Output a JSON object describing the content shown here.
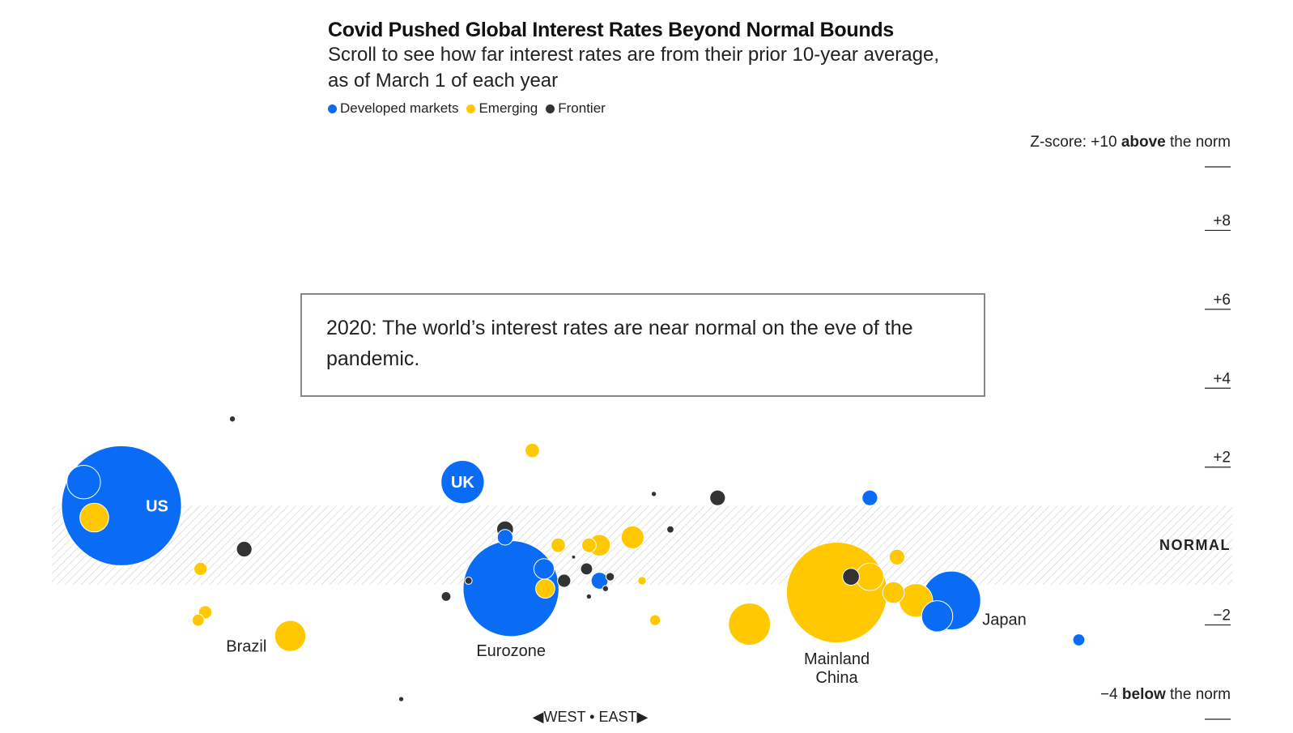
{
  "header": {
    "title": "Covid Pushed Global Interest Rates Beyond Normal Bounds",
    "subtitle": "Scroll to see how far interest rates are from their prior 10-year average, as of March 1 of each year"
  },
  "legend": [
    {
      "label": "Developed markets",
      "color": "#0a6cf5"
    },
    {
      "label": "Emerging",
      "color": "#ffc800"
    },
    {
      "label": "Frontier",
      "color": "#333333"
    }
  ],
  "callout": {
    "text": "2020: The world’s interest rates are near normal on the eve of the pandemic."
  },
  "colors": {
    "developed": "#0a6cf5",
    "emerging": "#ffc800",
    "frontier": "#333333",
    "hatch": "#c8c8c8"
  },
  "chart_data": {
    "type": "scatter",
    "title": "Covid Pushed Global Interest Rates Beyond Normal Bounds",
    "year": 2020,
    "x_axis": {
      "label_west": "◀WEST",
      "separator": "•",
      "label_east": "EAST▶",
      "range": [
        0,
        100
      ]
    },
    "y_axis": {
      "label": "Z-score",
      "range": [
        -4,
        10
      ],
      "top_prefix": "Z-score: +10 ",
      "top_bold": "above",
      "top_suffix": " the norm",
      "bottom_prefix": "−4 ",
      "bottom_bold": "below",
      "bottom_suffix": " the norm",
      "ticks": [
        {
          "value": 8,
          "label": "+8"
        },
        {
          "value": 6,
          "label": "+6"
        },
        {
          "value": 4,
          "label": "+4"
        },
        {
          "value": 2,
          "label": "+2"
        },
        {
          "value": -2,
          "label": "−2"
        }
      ],
      "normal_band": [
        -1,
        1
      ],
      "normal_label": "NORMAL"
    },
    "points": [
      {
        "name": "US",
        "group": "developed",
        "x": 5.9,
        "z": 1.0,
        "size": 10,
        "label": "US",
        "label_inside": true
      },
      {
        "name": "",
        "group": "developed",
        "x": 2.7,
        "z": 1.6,
        "size": 2.8
      },
      {
        "name": "",
        "group": "emerging",
        "x": 3.6,
        "z": 0.7,
        "size": 2.4
      },
      {
        "name": "",
        "group": "frontier",
        "x": 15.3,
        "z": 3.2,
        "size": 0.5
      },
      {
        "name": "",
        "group": "frontier",
        "x": 16.3,
        "z": -0.1,
        "size": 1.3
      },
      {
        "name": "",
        "group": "emerging",
        "x": 12.6,
        "z": -0.6,
        "size": 1.1
      },
      {
        "name": "",
        "group": "emerging",
        "x": 13.0,
        "z": -1.7,
        "size": 1.1
      },
      {
        "name": "",
        "group": "emerging",
        "x": 12.4,
        "z": -1.9,
        "size": 1.0
      },
      {
        "name": "Brazil",
        "group": "emerging",
        "x": 20.2,
        "z": -2.3,
        "size": 2.6,
        "label": "Brazil"
      },
      {
        "name": "",
        "group": "frontier",
        "x": 29.6,
        "z": -3.9,
        "size": 0.4
      },
      {
        "name": "UK",
        "group": "developed",
        "x": 34.8,
        "z": 1.6,
        "size": 3.6,
        "label": "UK",
        "label_inside": true
      },
      {
        "name": "",
        "group": "emerging",
        "x": 40.7,
        "z": 2.4,
        "size": 1.2
      },
      {
        "name": "",
        "group": "frontier",
        "x": 38.4,
        "z": 0.4,
        "size": 1.4
      },
      {
        "name": "",
        "group": "developed",
        "x": 38.4,
        "z": 0.2,
        "size": 1.3
      },
      {
        "name": "Eurozone",
        "group": "developed",
        "x": 38.9,
        "z": -1.1,
        "size": 8.0,
        "label": "Eurozone"
      },
      {
        "name": "",
        "group": "developed",
        "x": 41.7,
        "z": -0.6,
        "size": 1.7
      },
      {
        "name": "",
        "group": "emerging",
        "x": 41.8,
        "z": -1.1,
        "size": 1.6
      },
      {
        "name": "",
        "group": "frontier",
        "x": 33.4,
        "z": -1.3,
        "size": 0.8
      },
      {
        "name": "",
        "group": "frontier",
        "x": 35.3,
        "z": -0.9,
        "size": 0.6
      },
      {
        "name": "",
        "group": "frontier",
        "x": 43.4,
        "z": -0.9,
        "size": 1.1
      },
      {
        "name": "",
        "group": "emerging",
        "x": 42.9,
        "z": -0.0,
        "size": 1.2
      },
      {
        "name": "",
        "group": "emerging",
        "x": 45.5,
        "z": -0.0,
        "size": 1.2
      },
      {
        "name": "",
        "group": "emerging",
        "x": 46.4,
        "z": -0.0,
        "size": 1.8
      },
      {
        "name": "",
        "group": "emerging",
        "x": 49.2,
        "z": 0.2,
        "size": 1.9
      },
      {
        "name": "",
        "group": "frontier",
        "x": 44.2,
        "z": -0.3,
        "size": 0.3
      },
      {
        "name": "",
        "group": "frontier",
        "x": 45.3,
        "z": -0.6,
        "size": 1.0
      },
      {
        "name": "",
        "group": "developed",
        "x": 46.4,
        "z": -0.9,
        "size": 1.4
      },
      {
        "name": "",
        "group": "frontier",
        "x": 47.3,
        "z": -0.8,
        "size": 0.7
      },
      {
        "name": "",
        "group": "frontier",
        "x": 46.9,
        "z": -1.1,
        "size": 0.5
      },
      {
        "name": "",
        "group": "frontier",
        "x": 45.5,
        "z": -1.3,
        "size": 0.4
      },
      {
        "name": "",
        "group": "emerging",
        "x": 50.0,
        "z": -0.9,
        "size": 0.7
      },
      {
        "name": "",
        "group": "frontier",
        "x": 51.0,
        "z": 1.3,
        "size": 0.4
      },
      {
        "name": "",
        "group": "frontier",
        "x": 52.4,
        "z": 0.4,
        "size": 0.6
      },
      {
        "name": "",
        "group": "emerging",
        "x": 51.1,
        "z": -1.9,
        "size": 0.9
      },
      {
        "name": "",
        "group": "frontier",
        "x": 56.4,
        "z": 1.2,
        "size": 1.3
      },
      {
        "name": "",
        "group": "emerging",
        "x": 59.1,
        "z": -2.0,
        "size": 3.5
      },
      {
        "name": "Mainland China",
        "group": "emerging",
        "x": 66.5,
        "z": -1.2,
        "size": 8.4,
        "label": "Mainland China"
      },
      {
        "name": "",
        "group": "frontier",
        "x": 67.7,
        "z": -0.8,
        "size": 1.4
      },
      {
        "name": "",
        "group": "emerging",
        "x": 69.3,
        "z": -0.8,
        "size": 2.3
      },
      {
        "name": "",
        "group": "developed",
        "x": 69.3,
        "z": 1.2,
        "size": 1.3
      },
      {
        "name": "",
        "group": "emerging",
        "x": 71.6,
        "z": -0.3,
        "size": 1.3
      },
      {
        "name": "",
        "group": "emerging",
        "x": 71.3,
        "z": -1.2,
        "size": 1.8
      },
      {
        "name": "",
        "group": "emerging",
        "x": 73.2,
        "z": -1.4,
        "size": 2.8
      },
      {
        "name": "Japan",
        "group": "developed",
        "x": 76.2,
        "z": -1.4,
        "size": 4.9,
        "label": "Japan"
      },
      {
        "name": "",
        "group": "developed",
        "x": 75.0,
        "z": -1.8,
        "size": 2.6
      },
      {
        "name": "",
        "group": "developed",
        "x": 87.0,
        "z": -2.4,
        "size": 1.0
      }
    ]
  }
}
